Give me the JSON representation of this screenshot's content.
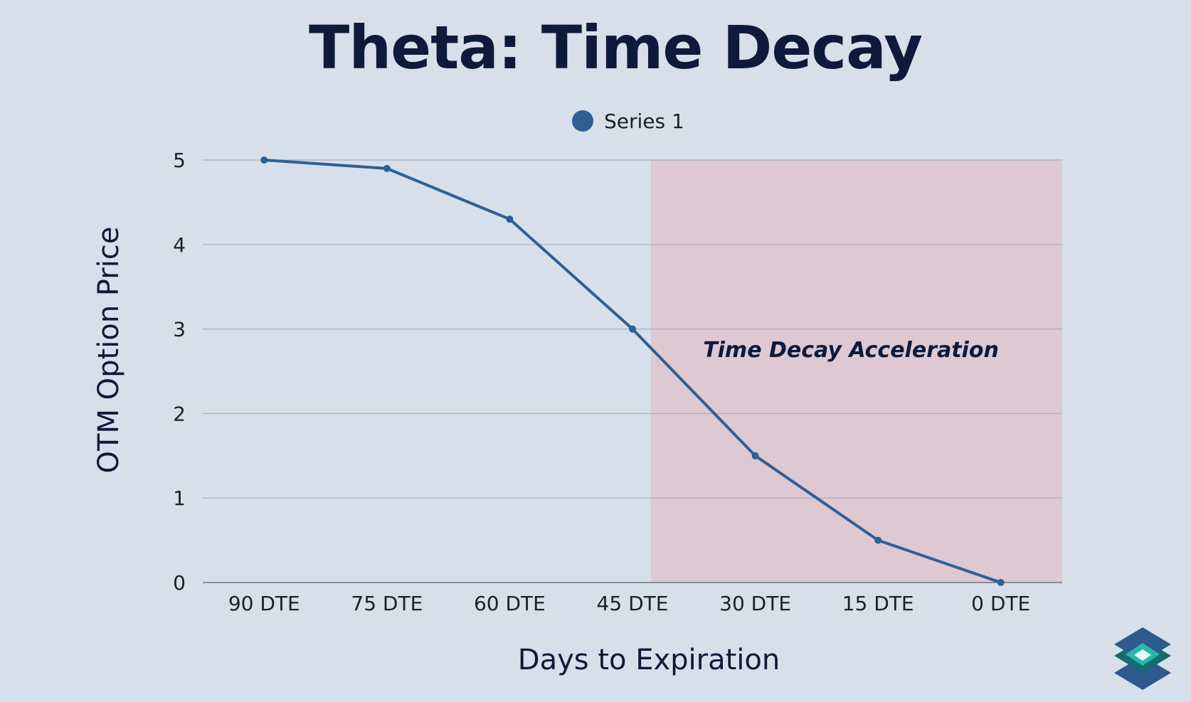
{
  "chart_data": {
    "type": "line",
    "title": "Theta: Time Decay",
    "xlabel": "Days to Expiration",
    "ylabel": "OTM Option Price",
    "categories": [
      "90 DTE",
      "75 DTE",
      "60 DTE",
      "45 DTE",
      "30 DTE",
      "15 DTE",
      "0 DTE"
    ],
    "series": [
      {
        "name": "Series 1",
        "values": [
          5,
          4.9,
          4.3,
          3,
          1.5,
          0.5,
          0
        ],
        "color": "#2f5f94"
      }
    ],
    "ylim": [
      0,
      5
    ],
    "yticks": [
      "0",
      "1",
      "2",
      "3",
      "4",
      "5"
    ],
    "grid": true,
    "legend_position": "top-center",
    "highlight_region": {
      "from_category_index": 3.15,
      "to_category_index": 6.5,
      "color": "#dec8d2",
      "label": "Time Decay Acceleration"
    }
  }
}
